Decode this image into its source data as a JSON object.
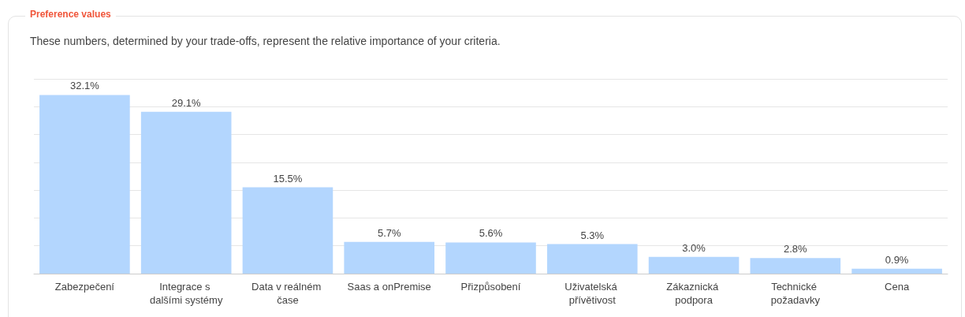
{
  "chart_data": {
    "type": "bar",
    "title": "Preference values",
    "subtitle": "These numbers, determined by your trade-offs, represent the relative importance of your criteria.",
    "categories": [
      "Zabezpečení",
      "Integrace s dalšími systémy",
      "Data v reálném čase",
      "Saas a onPremise",
      "Přizpůsobení",
      "Uživatelská přívětivost",
      "Zákaznická podpora",
      "Technické požadavky",
      "Cena"
    ],
    "values": [
      32.1,
      29.1,
      15.5,
      5.7,
      5.6,
      5.3,
      3.0,
      2.8,
      0.9
    ],
    "value_labels": [
      "32.1%",
      "29.1%",
      "15.5%",
      "5.7%",
      "5.6%",
      "5.3%",
      "3.0%",
      "2.8%",
      "0.9%"
    ],
    "color": "#b3d6fe",
    "ylim": [
      0,
      35
    ],
    "yticks": [
      {
        "value": 0,
        "label": null
      },
      {
        "value": 5,
        "label": null
      },
      {
        "value": 10,
        "label": null
      },
      {
        "value": 15,
        "label": null
      },
      {
        "value": 20,
        "label": null
      },
      {
        "value": 25,
        "label": null
      },
      {
        "value": 30,
        "label": null
      },
      {
        "value": 35,
        "label": null
      }
    ],
    "tick_labels": "x",
    "grid": "y"
  }
}
